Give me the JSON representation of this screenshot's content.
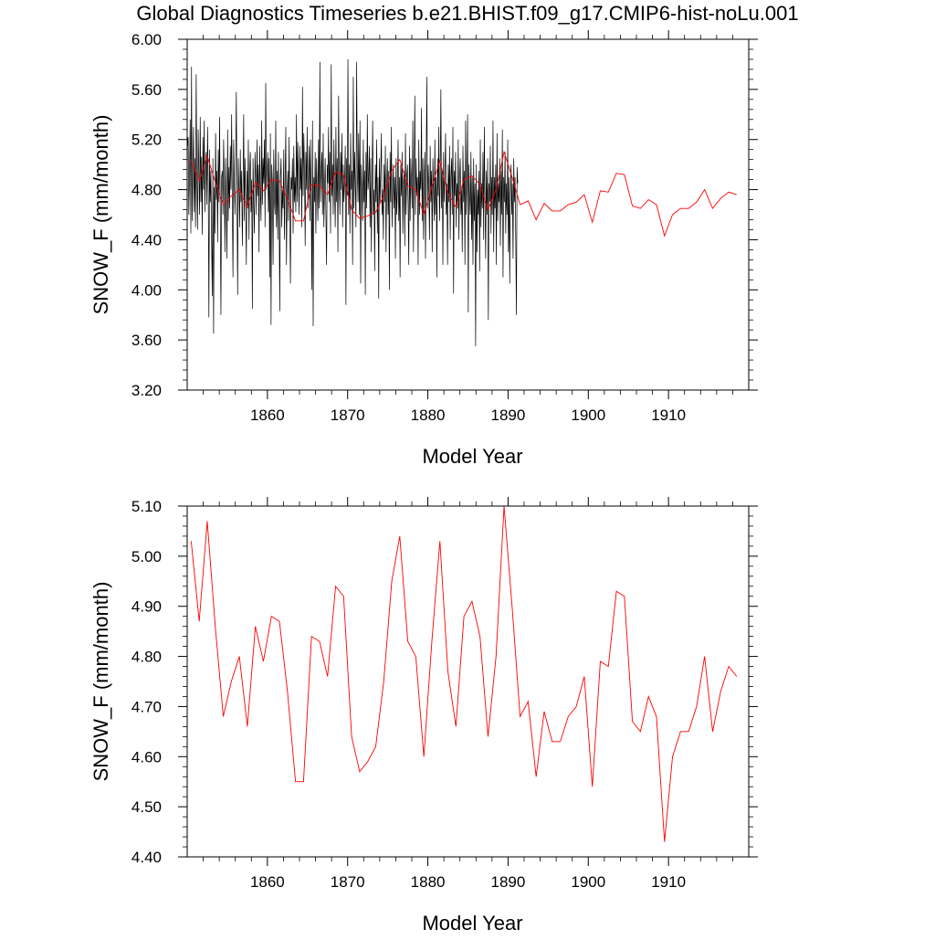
{
  "figure": {
    "title": "Global Diagnostics Timeseries b.e21.BHIST.f09_g17.CMIP6-hist-noLu.001"
  },
  "colors": {
    "monthly_line": "#000000",
    "annual_line": "#ff0000",
    "axes": "#000000"
  },
  "chart_data": [
    {
      "type": "line",
      "xlabel": "Model Year",
      "ylabel": "SNOW_F (mm/month)",
      "xlim": [
        1850,
        1920
      ],
      "ylim": [
        3.2,
        6.0
      ],
      "xticks": [
        1860,
        1870,
        1880,
        1890,
        1900,
        1910
      ],
      "xtick_labels": [
        "1860",
        "1870",
        "1880",
        "1890",
        "1900",
        "1910"
      ],
      "yticks": [
        3.2,
        3.6,
        4.0,
        4.4,
        4.8,
        5.2,
        5.6,
        6.0
      ],
      "ytick_labels": [
        "3.20",
        "3.60",
        "4.00",
        "4.40",
        "4.80",
        "5.20",
        "5.60",
        "6.00"
      ],
      "series": [
        {
          "resolution": "monthly",
          "x_start": 1850.04,
          "x_step": 0.0833333,
          "values": [
            5.15,
            5.22,
            4.6,
            4.92,
            5.36,
            4.45,
            5.78,
            4.55,
            4.95,
            5.3,
            4.62,
            5.05,
            4.5,
            5.72,
            4.88,
            4.48,
            5.28,
            4.92,
            4.6,
            5.38,
            4.7,
            5.06,
            4.44,
            5.22,
            4.8,
            5.35,
            4.62,
            4.98,
            5.1,
            4.68,
            5.3,
            4.85,
            3.78,
            5.12,
            4.7,
            4.95,
            4.4,
            3.95,
            5.05,
            3.65,
            4.82,
            4.45,
            5.25,
            4.72,
            4.95,
            4.38,
            5.12,
            4.7,
            5.38,
            4.62,
            3.8,
            4.9,
            4.95,
            4.6,
            5.2,
            4.85,
            4.3,
            5.05,
            4.7,
            4.25,
            5.28,
            4.55,
            4.98,
            4.65,
            5.15,
            4.8,
            5.4,
            4.7,
            4.1,
            5.2,
            4.85,
            4.6,
            4.96,
            5.58,
            4.75,
            3.96,
            5.05,
            4.8,
            4.5,
            5.12,
            4.7,
            4.95,
            4.35,
            4.8,
            5.4,
            4.55,
            5.05,
            4.7,
            4.2,
            4.95,
            4.65,
            5.2,
            4.4,
            4.95,
            5.1,
            4.62,
            4.88,
            3.85,
            5.05,
            4.7,
            4.45,
            5.1,
            4.9,
            4.6,
            5.2,
            4.75,
            5.0,
            4.3,
            5.15,
            4.8,
            4.55,
            5.35,
            4.68,
            5.05,
            4.85,
            5.2,
            4.5,
            5.65,
            4.8,
            4.95,
            5.1,
            4.62,
            5.05,
            4.1,
            5.25,
            3.72,
            5.0,
            4.85,
            4.2,
            5.12,
            4.7,
            4.6,
            5.35,
            4.5,
            4.95,
            4.4,
            5.1,
            4.7,
            3.83,
            4.9,
            5.05,
            4.5,
            4.8,
            4.65,
            5.12,
            4.4,
            4.85,
            5.3,
            4.2,
            4.75,
            4.95,
            4.55,
            5.22,
            4.6,
            4.05,
            4.9,
            4.8,
            5.05,
            4.45,
            5.15,
            4.7,
            4.9,
            4.62,
            5.4,
            4.7,
            5.18,
            4.85,
            4.6,
            5.15,
            4.8,
            5.05,
            4.5,
            5.62,
            4.75,
            5.25,
            4.95,
            4.35,
            5.1,
            4.8,
            5.3,
            4.65,
            4.9,
            5.15,
            4.55,
            5.2,
            4.75,
            4.0,
            5.35,
            3.71,
            4.9,
            4.7,
            5.1,
            4.45,
            5.05,
            4.8,
            4.55,
            5.2,
            4.65,
            5.82,
            4.7,
            4.95,
            5.1,
            4.6,
            5.25,
            4.5,
            4.8,
            5.05,
            4.62,
            4.2,
            5.0,
            4.85,
            5.3,
            4.7,
            5.1,
            4.45,
            5.8,
            4.75,
            5.0,
            4.6,
            5.2,
            4.8,
            4.5,
            5.3,
            4.7,
            5.05,
            4.3,
            5.55,
            4.85,
            4.6,
            5.1,
            4.8,
            5.25,
            4.5,
            5.0,
            4.7,
            4.85,
            5.15,
            3.88,
            5.05,
            4.75,
            5.84,
            4.6,
            5.0,
            4.45,
            5.25,
            4.8,
            4.95,
            4.2,
            5.7,
            4.65,
            5.1,
            4.85,
            4.5,
            5.82,
            4.95,
            4.7,
            5.25,
            4.6,
            5.35,
            4.05,
            5.0,
            4.8,
            4.55,
            5.2,
            4.7,
            4.95,
            3.96,
            5.1,
            4.65,
            5.4,
            4.8,
            4.9,
            5.15,
            4.5,
            5.05,
            4.3,
            4.9,
            5.35,
            4.6,
            4.8,
            4.15,
            5.0,
            4.7,
            5.2,
            4.45,
            4.9,
            3.93,
            5.05,
            4.7,
            4.95,
            5.25,
            4.6,
            4.8,
            4.4,
            5.0,
            4.7,
            5.15,
            4.3,
            4.85,
            5.05,
            4.6,
            4.95,
            4.0,
            5.1,
            4.7,
            5.3,
            4.5,
            4.8,
            5.0,
            4.65,
            4.9,
            4.25,
            5.05,
            4.6,
            4.8,
            5.2,
            4.55,
            4.9,
            4.1,
            5.0,
            4.75,
            5.1,
            4.45,
            4.85,
            4.95,
            4.35,
            5.25,
            4.6,
            4.9,
            5.0,
            4.7,
            4.2,
            5.15,
            4.55,
            5.05,
            4.85,
            4.65,
            5.35,
            4.3,
            4.9,
            5.55,
            4.6,
            5.05,
            4.75,
            4.9,
            4.2,
            5.2,
            4.6,
            4.95,
            4.8,
            5.45,
            4.55,
            5.05,
            4.4,
            4.9,
            5.1,
            4.25,
            4.95,
            5.7,
            4.65,
            5.0,
            4.8,
            4.4,
            5.15,
            4.7,
            4.95,
            4.3,
            5.05,
            4.8,
            4.55,
            5.2,
            4.6,
            4.9,
            4.1,
            5.05,
            4.75,
            5.3,
            4.55,
            4.85,
            5.6,
            4.65,
            4.95,
            4.2,
            5.1,
            4.7,
            4.9,
            5.25,
            4.6,
            4.85,
            4.2,
            5.0,
            4.7,
            5.15,
            4.4,
            4.9,
            5.05,
            4.6,
            5.3,
            3.97,
            4.95,
            4.75,
            5.1,
            4.5,
            4.85,
            4.65,
            5.2,
            4.4,
            4.9,
            5.05,
            4.6,
            4.8,
            4.3,
            5.15,
            4.7,
            4.95,
            4.2,
            5.35,
            4.6,
            4.85,
            5.4,
            3.82,
            5.0,
            4.75,
            4.6,
            5.1,
            4.4,
            4.9,
            4.2,
            5.05,
            4.55,
            4.85,
            3.55,
            5.0,
            4.3,
            4.8,
            4.6,
            4.95,
            4.15,
            5.2,
            4.5,
            4.85,
            4.65,
            5.1,
            4.4,
            5.3,
            4.7,
            4.25,
            4.95,
            4.6,
            5.05,
            3.76,
            4.85,
            4.7,
            5.15,
            4.45,
            4.9,
            4.6,
            5.35,
            4.3,
            4.9,
            4.65,
            5.0,
            4.2,
            5.25,
            4.55,
            4.85,
            4.7,
            5.05,
            4.35,
            4.95,
            4.6,
            5.28,
            4.1,
            4.9,
            4.7,
            5.1,
            4.45,
            4.85,
            4.6,
            5.2,
            4.3,
            4.9,
            4.05,
            4.75,
            5.0,
            4.6,
            4.85,
            4.25,
            5.05,
            4.7,
            4.9,
            4.4,
            3.8,
            4.98,
            4.85
          ]
        },
        {
          "resolution": "annual",
          "x": [
            1850.5,
            1851.5,
            1852.5,
            1853.5,
            1854.5,
            1855.5,
            1856.5,
            1857.5,
            1858.5,
            1859.5,
            1860.5,
            1861.5,
            1862.5,
            1863.5,
            1864.5,
            1865.5,
            1866.5,
            1867.5,
            1868.5,
            1869.5,
            1870.5,
            1871.5,
            1872.5,
            1873.5,
            1874.5,
            1875.5,
            1876.5,
            1877.5,
            1878.5,
            1879.5,
            1880.5,
            1881.5,
            1882.5,
            1883.5,
            1884.5,
            1885.5,
            1886.5,
            1887.5,
            1888.5,
            1889.5,
            1890.5,
            1891.5,
            1892.5,
            1893.5,
            1894.5,
            1895.5,
            1896.5,
            1897.5,
            1898.5,
            1899.5,
            1900.5,
            1901.5,
            1902.5,
            1903.5,
            1904.5,
            1905.5,
            1906.5,
            1907.5,
            1908.5,
            1909.5,
            1910.5,
            1911.5,
            1912.5,
            1913.5,
            1914.5,
            1915.5,
            1916.5,
            1917.5,
            1918.5
          ],
          "values": [
            5.03,
            4.87,
            5.07,
            4.86,
            4.68,
            4.75,
            4.8,
            4.66,
            4.86,
            4.79,
            4.88,
            4.87,
            4.73,
            4.55,
            4.55,
            4.84,
            4.83,
            4.76,
            4.94,
            4.92,
            4.64,
            4.57,
            4.59,
            4.62,
            4.75,
            4.95,
            5.04,
            4.83,
            4.8,
            4.6,
            4.83,
            5.03,
            4.77,
            4.66,
            4.88,
            4.91,
            4.84,
            4.64,
            4.8,
            5.1,
            4.9,
            4.68,
            4.71,
            4.56,
            4.69,
            4.63,
            4.63,
            4.68,
            4.7,
            4.76,
            4.54,
            4.79,
            4.78,
            4.93,
            4.92,
            4.67,
            4.65,
            4.72,
            4.68,
            4.43,
            4.6,
            4.65,
            4.65,
            4.7,
            4.8,
            4.65,
            4.73,
            4.78,
            4.76
          ]
        }
      ]
    },
    {
      "type": "line",
      "xlabel": "Model Year",
      "ylabel": "SNOW_F (mm/month)",
      "xlim": [
        1850,
        1920
      ],
      "ylim": [
        4.4,
        5.1
      ],
      "xticks": [
        1860,
        1870,
        1880,
        1890,
        1900,
        1910
      ],
      "xtick_labels": [
        "1860",
        "1870",
        "1880",
        "1890",
        "1900",
        "1910"
      ],
      "yticks": [
        4.4,
        4.5,
        4.6,
        4.7,
        4.8,
        4.9,
        5.0,
        5.1
      ],
      "ytick_labels": [
        "4.40",
        "4.50",
        "4.60",
        "4.70",
        "4.80",
        "4.90",
        "5.00",
        "5.10"
      ],
      "series": [
        {
          "resolution": "annual",
          "x": [
            1850.5,
            1851.5,
            1852.5,
            1853.5,
            1854.5,
            1855.5,
            1856.5,
            1857.5,
            1858.5,
            1859.5,
            1860.5,
            1861.5,
            1862.5,
            1863.5,
            1864.5,
            1865.5,
            1866.5,
            1867.5,
            1868.5,
            1869.5,
            1870.5,
            1871.5,
            1872.5,
            1873.5,
            1874.5,
            1875.5,
            1876.5,
            1877.5,
            1878.5,
            1879.5,
            1880.5,
            1881.5,
            1882.5,
            1883.5,
            1884.5,
            1885.5,
            1886.5,
            1887.5,
            1888.5,
            1889.5,
            1890.5,
            1891.5,
            1892.5,
            1893.5,
            1894.5,
            1895.5,
            1896.5,
            1897.5,
            1898.5,
            1899.5,
            1900.5,
            1901.5,
            1902.5,
            1903.5,
            1904.5,
            1905.5,
            1906.5,
            1907.5,
            1908.5,
            1909.5,
            1910.5,
            1911.5,
            1912.5,
            1913.5,
            1914.5,
            1915.5,
            1916.5,
            1917.5,
            1918.5
          ],
          "values": [
            5.03,
            4.87,
            5.07,
            4.86,
            4.68,
            4.75,
            4.8,
            4.66,
            4.86,
            4.79,
            4.88,
            4.87,
            4.73,
            4.55,
            4.55,
            4.84,
            4.83,
            4.76,
            4.94,
            4.92,
            4.64,
            4.57,
            4.59,
            4.62,
            4.75,
            4.95,
            5.04,
            4.83,
            4.8,
            4.6,
            4.83,
            5.03,
            4.77,
            4.66,
            4.88,
            4.91,
            4.84,
            4.64,
            4.8,
            5.1,
            4.9,
            4.68,
            4.71,
            4.56,
            4.69,
            4.63,
            4.63,
            4.68,
            4.7,
            4.76,
            4.54,
            4.79,
            4.78,
            4.93,
            4.92,
            4.67,
            4.65,
            4.72,
            4.68,
            4.43,
            4.6,
            4.65,
            4.65,
            4.7,
            4.8,
            4.65,
            4.73,
            4.78,
            4.76
          ]
        }
      ]
    }
  ]
}
